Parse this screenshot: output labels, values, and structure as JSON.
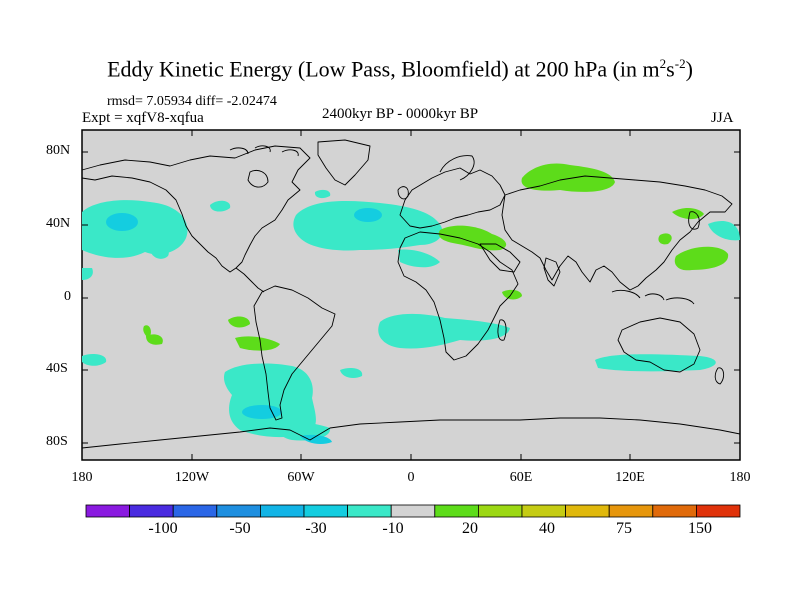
{
  "title": {
    "main": "Eddy Kinetic Energy (Low Pass, Bloomfield) at 200 hPa (in m",
    "sup1": "2",
    "mid": "s",
    "sup2": "-2",
    "end": ")"
  },
  "stats": "rmsd= 7.05934 diff= -2.02474",
  "experiment": "Expt = xqfV8-xqfua",
  "period": "2400kyr BP - 0000kyr BP",
  "season": "JJA",
  "lat_labels": [
    "80N",
    "40N",
    "0",
    "40S",
    "80S"
  ],
  "lon_labels": [
    "180",
    "120W",
    "60W",
    "0",
    "60E",
    "120E",
    "180"
  ],
  "colorbar": {
    "colors": [
      "#8a1ae0",
      "#4a2be0",
      "#2a66e6",
      "#1e8fe0",
      "#12b4e6",
      "#14cde0",
      "#3ae8c8",
      "#d3d3d3",
      "#5ddc1a",
      "#9cd814",
      "#c5cc14",
      "#e0b80c",
      "#e6960c",
      "#e06a0a",
      "#e0320a"
    ],
    "labels": [
      "-100",
      "-50",
      "-30",
      "-10",
      "20",
      "40",
      "75",
      "150"
    ]
  },
  "map": {
    "background": "#d3d3d3",
    "palette": {
      "teal": "#3ae8c8",
      "cyan": "#14cde0",
      "green": "#5ddc1a"
    }
  }
}
